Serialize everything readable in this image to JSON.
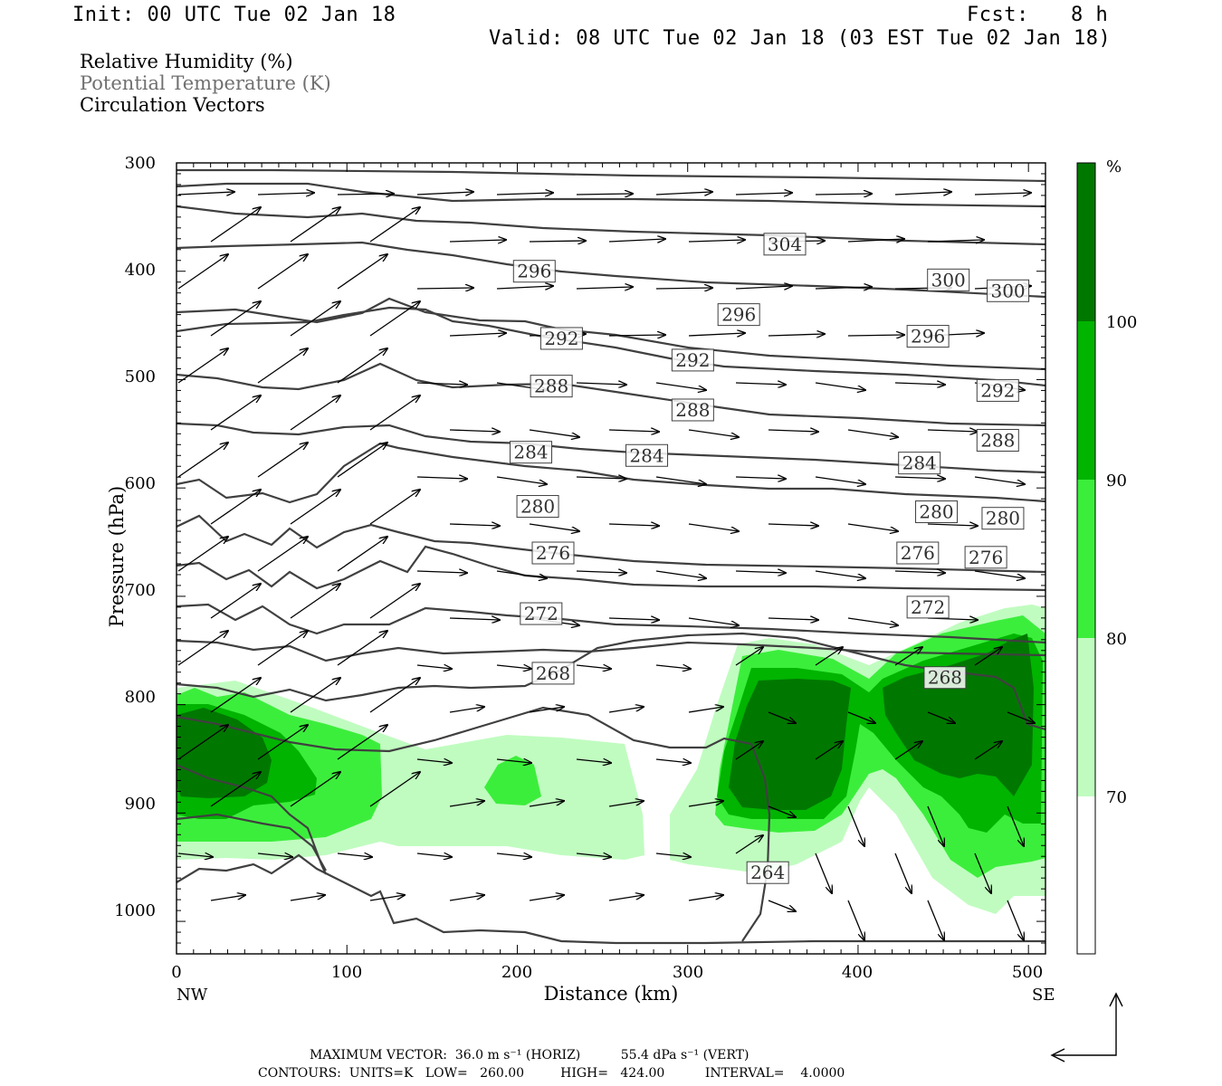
{
  "header": {
    "init": "Init: 00 UTC Tue 02 Jan 18",
    "fcst_label": "Fcst:",
    "fcst_value": "8 h",
    "valid": "Valid: 08 UTC Tue 02 Jan 18 (03 EST Tue 02 Jan 18)"
  },
  "legend": {
    "rh": "Relative Humidity (%)",
    "theta": "Potential Temperature (K)",
    "vectors": "Circulation Vectors"
  },
  "footer": {
    "line1": "MAXIMUM VECTOR:  36.0 m s⁻¹ (HORIZ)          55.4 dPa s⁻¹ (VERT)",
    "line2": "CONTOURS:  UNITS=K   LOW=   260.00         HIGH=   424.00          INTERVAL=    4.0000"
  },
  "colors": {
    "rh_70": "#c0fcc0",
    "rh_80": "#3cee3c",
    "rh_90": "#00b400",
    "rh_100": "#007800",
    "contour": "#404040"
  },
  "chart_data": {
    "type": "cross-section",
    "xlabel": "Distance (km)",
    "ylabel": "Pressure (hPa)",
    "xlim": [
      0,
      510
    ],
    "ylim": [
      300,
      1030
    ],
    "x_ticks": [
      "0",
      "100",
      "200",
      "300",
      "400",
      "500"
    ],
    "y_ticks": [
      "300",
      "400",
      "500",
      "600",
      "700",
      "800",
      "900",
      "1000"
    ],
    "x_endpoints": [
      "NW",
      "SE"
    ],
    "colorbar": {
      "unit": "%",
      "ticks": [
        "70",
        "80",
        "90",
        "100"
      ]
    },
    "isentrope_labels": [
      {
        "value": "304",
        "x": 357,
        "p": 375
      },
      {
        "value": "300",
        "x": 453,
        "p": 408
      },
      {
        "value": "300",
        "x": 488,
        "p": 418
      },
      {
        "value": "296",
        "x": 210,
        "p": 400
      },
      {
        "value": "296",
        "x": 330,
        "p": 440
      },
      {
        "value": "296",
        "x": 441,
        "p": 460
      },
      {
        "value": "292",
        "x": 226,
        "p": 462
      },
      {
        "value": "292",
        "x": 303,
        "p": 482
      },
      {
        "value": "292",
        "x": 482,
        "p": 510
      },
      {
        "value": "288",
        "x": 220,
        "p": 506
      },
      {
        "value": "288",
        "x": 303,
        "p": 528
      },
      {
        "value": "288",
        "x": 482,
        "p": 556
      },
      {
        "value": "284",
        "x": 208,
        "p": 567
      },
      {
        "value": "284",
        "x": 276,
        "p": 570
      },
      {
        "value": "284",
        "x": 436,
        "p": 577
      },
      {
        "value": "280",
        "x": 212,
        "p": 617
      },
      {
        "value": "280",
        "x": 446,
        "p": 622
      },
      {
        "value": "280",
        "x": 485,
        "p": 628
      },
      {
        "value": "276",
        "x": 221,
        "p": 660
      },
      {
        "value": "276",
        "x": 435,
        "p": 660
      },
      {
        "value": "276",
        "x": 475,
        "p": 664
      },
      {
        "value": "272",
        "x": 214,
        "p": 716
      },
      {
        "value": "272",
        "x": 441,
        "p": 710
      },
      {
        "value": "268",
        "x": 221,
        "p": 771
      },
      {
        "value": "268",
        "x": 451,
        "p": 775
      },
      {
        "value": "264",
        "x": 347,
        "p": 955
      }
    ]
  }
}
